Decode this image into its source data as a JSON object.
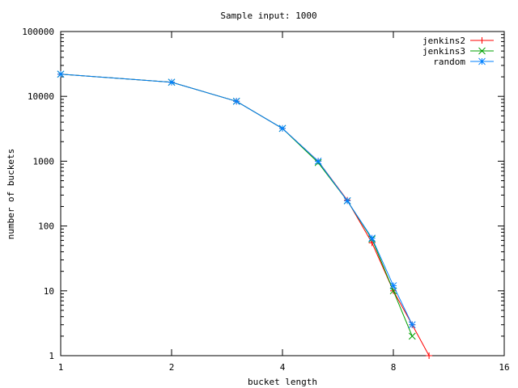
{
  "chart_data": {
    "type": "line",
    "title": "Sample input: 1000",
    "xlabel": "bucket length",
    "ylabel": "number of buckets",
    "x_scale": "log2",
    "y_scale": "log10",
    "xlim": [
      1,
      16
    ],
    "ylim": [
      1,
      100000
    ],
    "x_ticks": [
      1,
      2,
      4,
      8,
      16
    ],
    "x_tick_labels": [
      "1",
      "2",
      "4",
      "8",
      "16"
    ],
    "y_ticks": [
      1,
      10,
      100,
      1000,
      10000,
      100000
    ],
    "y_tick_labels": [
      "1",
      "10",
      "100",
      "1000",
      "10000",
      "100000"
    ],
    "legend_position": "top-right",
    "series": [
      {
        "name": "jenkins2",
        "color": "#ff0000",
        "marker": "plus",
        "x": [
          1,
          2,
          3,
          4,
          5,
          6,
          7,
          8,
          9,
          10
        ],
        "y": [
          22000,
          16500,
          8400,
          3200,
          1000,
          250,
          55,
          10,
          3,
          1
        ]
      },
      {
        "name": "jenkins3",
        "color": "#00a000",
        "marker": "cross",
        "x": [
          1,
          2,
          3,
          4,
          5,
          6,
          7,
          8,
          9
        ],
        "y": [
          22000,
          16500,
          8400,
          3200,
          950,
          245,
          63,
          10,
          2
        ]
      },
      {
        "name": "random",
        "color": "#0080ff",
        "marker": "star",
        "x": [
          1,
          2,
          3,
          4,
          5,
          6,
          7,
          8,
          9
        ],
        "y": [
          22000,
          16500,
          8400,
          3200,
          1000,
          245,
          65,
          12,
          3
        ]
      }
    ]
  }
}
